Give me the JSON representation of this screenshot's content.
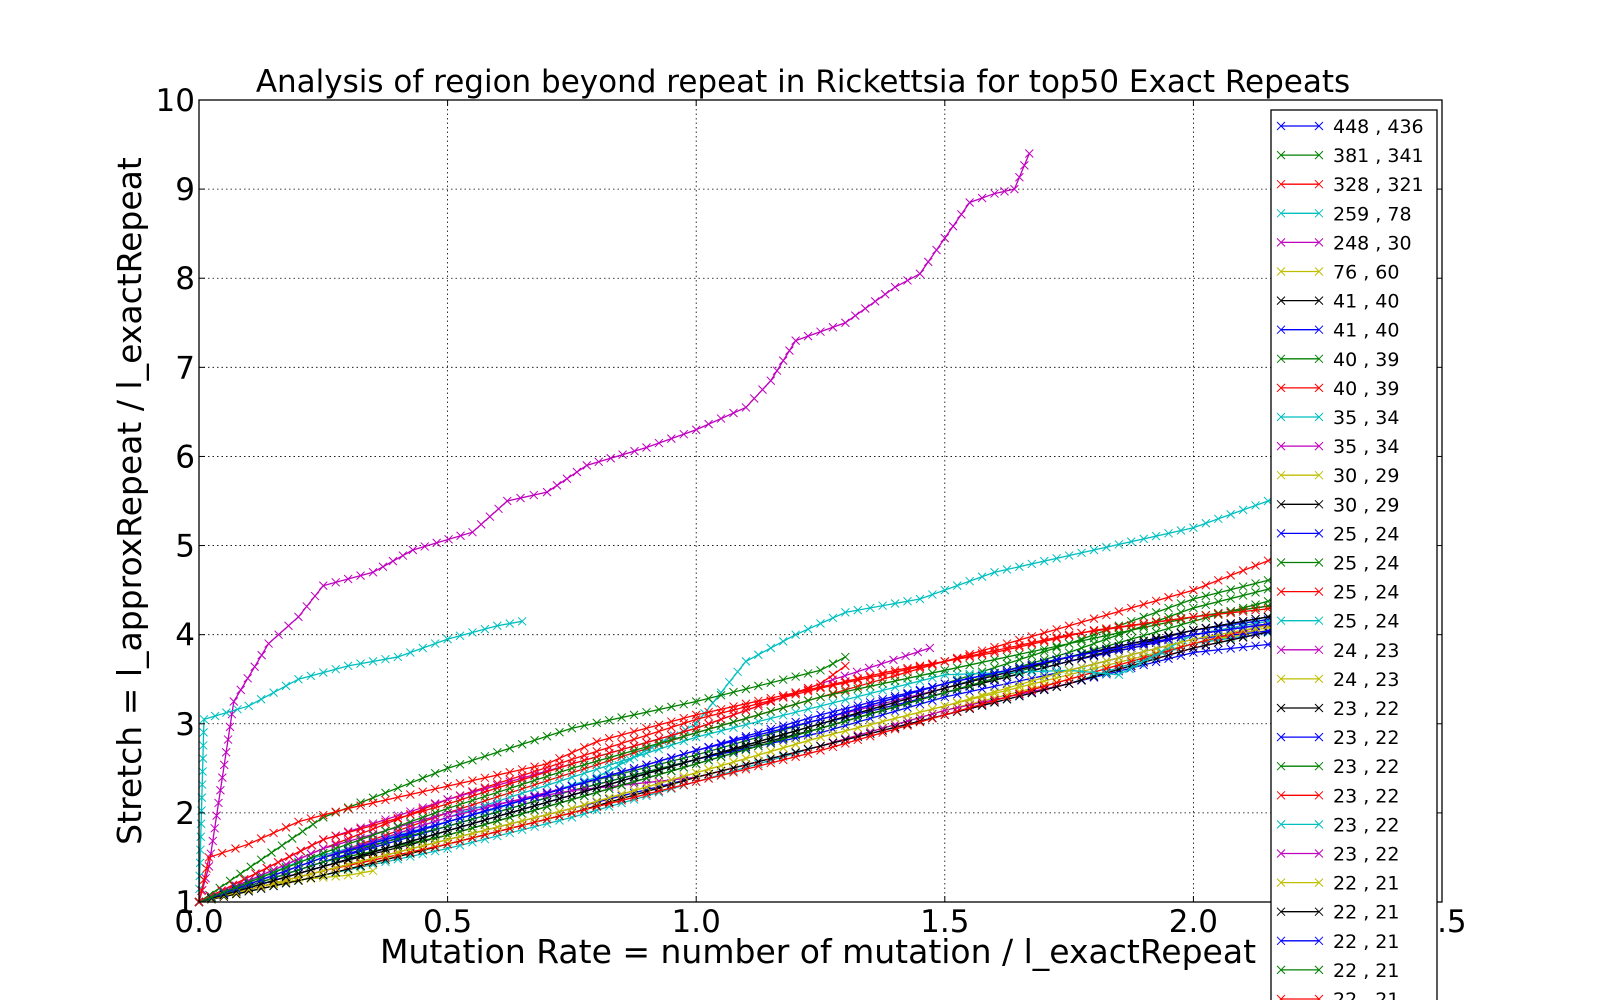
{
  "chart_data": {
    "type": "line",
    "title": "Analysis of region beyond repeat in Rickettsia for top50 Exact Repeats",
    "xlabel": "Mutation Rate = number of mutation / l_exactRepeat",
    "ylabel": "Stretch =   l_approxRepeat / l_exactRepeat",
    "xlim": [
      0.0,
      2.5
    ],
    "ylim": [
      1,
      10
    ],
    "xticks": [
      "0.0",
      "0.5",
      "1.0",
      "1.5",
      "2.0",
      "2.5"
    ],
    "yticks": [
      "1",
      "2",
      "3",
      "4",
      "5",
      "6",
      "7",
      "8",
      "9",
      "10"
    ],
    "grid": true,
    "legend_position": "right",
    "marker": "x",
    "series": [
      {
        "name": "448 , 436",
        "color": "#0000ff",
        "x": [
          0,
          0.25,
          0.5,
          0.75,
          1.0,
          1.25,
          1.5,
          1.75,
          2.0,
          2.25
        ],
        "y": [
          1.0,
          1.35,
          1.7,
          2.05,
          2.4,
          2.75,
          3.1,
          3.45,
          3.8,
          3.95
        ]
      },
      {
        "name": "381 , 341",
        "color": "#008000",
        "x": [
          0,
          0.25,
          0.5,
          0.75,
          1.0,
          1.25,
          1.5,
          1.75,
          2.0,
          2.25
        ],
        "y": [
          1.0,
          1.5,
          1.9,
          2.3,
          2.65,
          3.05,
          3.45,
          3.9,
          4.4,
          4.75
        ]
      },
      {
        "name": "328 , 321",
        "color": "#ff0000",
        "x": [
          0,
          0.25,
          0.5,
          0.75,
          1.0,
          1.25,
          1.5,
          1.75,
          2.0,
          2.25
        ],
        "y": [
          1.0,
          1.5,
          2.0,
          2.45,
          2.9,
          3.3,
          3.7,
          4.1,
          4.5,
          5.05
        ]
      },
      {
        "name": "259 , 78",
        "color": "#00bfbf",
        "x": [
          0,
          0.2,
          0.4,
          0.6,
          0.8,
          1.0,
          1.1,
          1.2,
          1.3,
          1.45,
          1.6,
          1.8,
          2.0,
          2.15,
          2.25
        ],
        "y": [
          1.0,
          1.45,
          1.75,
          2.05,
          2.4,
          3.0,
          3.7,
          4.0,
          4.25,
          4.4,
          4.7,
          4.95,
          5.2,
          5.5,
          5.6
        ]
      },
      {
        "name": "248 , 30",
        "color": "#bf00bf",
        "x": [
          0,
          0.02,
          0.07,
          0.14,
          0.2,
          0.25,
          0.35,
          0.43,
          0.55,
          0.62,
          0.7,
          0.78,
          0.9,
          1.0,
          1.1,
          1.15,
          1.2,
          1.3,
          1.4,
          1.45,
          1.5,
          1.55,
          1.6,
          1.64,
          1.67
        ],
        "y": [
          1.0,
          1.4,
          3.25,
          3.9,
          4.2,
          4.55,
          4.7,
          4.95,
          5.15,
          5.5,
          5.6,
          5.9,
          6.1,
          6.3,
          6.55,
          6.85,
          7.3,
          7.5,
          7.9,
          8.05,
          8.45,
          8.85,
          8.95,
          9.0,
          9.4
        ]
      },
      {
        "name": "76 , 60",
        "color": "#bfbf00",
        "x": [
          0,
          0.25,
          0.5,
          0.75,
          1.0,
          1.25,
          1.5,
          1.75,
          2.0,
          2.25
        ],
        "y": [
          1.0,
          1.3,
          1.65,
          2.0,
          2.4,
          2.75,
          3.15,
          3.5,
          3.9,
          4.2
        ]
      },
      {
        "name": "41 , 40",
        "color": "#000000",
        "x": [
          0,
          0.25,
          0.5,
          0.75,
          1.0,
          1.25,
          1.5,
          1.75,
          2.0,
          2.25
        ],
        "y": [
          1.0,
          1.4,
          1.8,
          2.2,
          2.6,
          2.95,
          3.35,
          3.7,
          4.0,
          4.2
        ]
      },
      {
        "name": "41 , 40",
        "color": "#0000ff",
        "x": [
          0,
          0.25,
          0.5,
          0.75,
          1.0,
          1.25,
          1.5,
          1.75,
          2.0,
          2.25
        ],
        "y": [
          1.0,
          1.45,
          1.85,
          2.25,
          2.6,
          3.0,
          3.35,
          3.7,
          4.0,
          4.25
        ]
      },
      {
        "name": "40 , 39",
        "color": "#008000",
        "x": [
          0,
          0.25,
          0.5,
          0.75,
          1.0,
          1.25,
          1.3
        ],
        "y": [
          1.0,
          1.95,
          2.5,
          2.95,
          3.25,
          3.6,
          3.75
        ]
      },
      {
        "name": "40 , 39",
        "color": "#ff0000",
        "x": [
          0,
          0.25,
          0.5,
          0.75,
          1.0,
          1.25,
          1.5,
          1.75,
          2.0,
          2.25
        ],
        "y": [
          1.0,
          1.6,
          2.15,
          2.6,
          3.05,
          3.4,
          3.7,
          4.0,
          4.2,
          4.4
        ]
      },
      {
        "name": "35 , 34",
        "color": "#00bfbf",
        "x": [
          0,
          0.01,
          0.1,
          0.2,
          0.3,
          0.4,
          0.5,
          0.6,
          0.65
        ],
        "y": [
          1.0,
          3.05,
          3.2,
          3.5,
          3.65,
          3.75,
          3.95,
          4.1,
          4.15
        ]
      },
      {
        "name": "35 , 34",
        "color": "#bf00bf",
        "x": [
          0,
          0.25,
          0.5,
          0.75,
          1.0,
          1.25,
          1.47
        ],
        "y": [
          1.0,
          1.7,
          2.15,
          2.55,
          2.95,
          3.45,
          3.85
        ]
      },
      {
        "name": "30 , 29",
        "color": "#bfbf00",
        "x": [
          0,
          0.25,
          0.5,
          0.75,
          1.0,
          1.25,
          1.5,
          1.75,
          2.0,
          2.25
        ],
        "y": [
          1.0,
          1.35,
          1.7,
          2.05,
          2.45,
          2.85,
          3.2,
          3.55,
          3.9,
          4.15
        ]
      },
      {
        "name": "30 , 29",
        "color": "#000000",
        "x": [
          0,
          0.25,
          0.5,
          0.75,
          1.0,
          1.25,
          1.5,
          1.75,
          2.0,
          2.25
        ],
        "y": [
          1.0,
          1.4,
          1.75,
          2.15,
          2.55,
          2.95,
          3.35,
          3.7,
          4.05,
          4.3
        ]
      },
      {
        "name": "25 , 24",
        "color": "#0000ff",
        "x": [
          0,
          0.25,
          0.5,
          0.75,
          1.0,
          1.25,
          1.5,
          1.75,
          2.0,
          2.25
        ],
        "y": [
          1.0,
          1.45,
          1.9,
          2.3,
          2.7,
          3.1,
          3.45,
          3.75,
          4.05,
          4.25
        ]
      },
      {
        "name": "25 , 24",
        "color": "#008000",
        "x": [
          0,
          0.25,
          0.5,
          0.75,
          1.0,
          1.25,
          1.5,
          1.75,
          2.0,
          2.25
        ],
        "y": [
          1.0,
          1.5,
          1.85,
          2.25,
          2.6,
          3.0,
          3.4,
          3.8,
          4.3,
          4.65
        ]
      },
      {
        "name": "25 , 24",
        "color": "#ff0000",
        "x": [
          0,
          0.25,
          0.5,
          0.75,
          1.0,
          1.25,
          1.3
        ],
        "y": [
          1.0,
          1.7,
          2.1,
          2.55,
          2.95,
          3.45,
          3.65
        ]
      },
      {
        "name": "25 , 24",
        "color": "#00bfbf",
        "x": [
          0,
          0.25,
          0.5,
          0.75,
          1.0,
          1.25,
          1.5,
          1.75,
          2.0,
          2.25
        ],
        "y": [
          1.0,
          1.3,
          1.6,
          1.95,
          2.35,
          2.75,
          3.1,
          3.45,
          3.9,
          4.1
        ]
      },
      {
        "name": "24 , 23",
        "color": "#bf00bf",
        "x": [
          0,
          0.25,
          0.5,
          0.75,
          1.0,
          1.25,
          1.5,
          1.75,
          2.0,
          2.25
        ],
        "y": [
          1.0,
          1.6,
          2.0,
          2.25,
          2.4,
          2.75,
          3.15,
          3.45,
          3.85,
          4.15
        ]
      },
      {
        "name": "24 , 23",
        "color": "#bfbf00",
        "x": [
          0,
          0.1,
          0.2,
          0.3,
          0.35
        ],
        "y": [
          1.0,
          1.15,
          1.25,
          1.3,
          1.35
        ]
      },
      {
        "name": "23 , 22",
        "color": "#000000",
        "x": [
          0,
          0.25,
          0.5,
          0.75,
          1.0,
          1.25,
          1.5,
          1.75,
          2.0,
          2.25
        ],
        "y": [
          1.0,
          1.3,
          1.65,
          2.0,
          2.4,
          2.75,
          3.1,
          3.45,
          3.85,
          4.15
        ]
      },
      {
        "name": "23 , 22",
        "color": "#0000ff",
        "x": [
          0,
          0.25,
          0.5,
          0.75,
          1.0,
          1.25,
          1.5,
          1.75,
          2.0,
          2.25
        ],
        "y": [
          1.0,
          1.4,
          1.8,
          2.2,
          2.6,
          2.9,
          3.3,
          3.6,
          3.95,
          4.1
        ]
      },
      {
        "name": "23 , 22",
        "color": "#008000",
        "x": [
          0,
          0.25,
          0.5,
          0.75,
          1.0,
          1.25,
          1.5,
          1.75,
          2.0,
          2.2
        ],
        "y": [
          1.0,
          1.45,
          1.75,
          2.15,
          2.55,
          2.95,
          3.35,
          3.75,
          4.15,
          4.45
        ]
      },
      {
        "name": "23 , 22",
        "color": "#ff0000",
        "x": [
          0,
          0.25,
          0.5,
          0.75,
          1.0,
          1.25,
          1.5,
          1.75,
          2.0,
          2.25
        ],
        "y": [
          1.0,
          1.35,
          1.65,
          2.0,
          2.35,
          2.7,
          3.1,
          3.5,
          3.9,
          4.25
        ]
      },
      {
        "name": "23 , 22",
        "color": "#00bfbf",
        "x": [
          0,
          0.25,
          0.5,
          0.75,
          1.0,
          1.25,
          1.5,
          1.75,
          1.85,
          2.0,
          2.25
        ],
        "y": [
          1.0,
          1.5,
          1.95,
          2.4,
          2.85,
          3.2,
          3.55,
          3.6,
          3.55,
          4.0,
          4.25
        ]
      },
      {
        "name": "23 , 22",
        "color": "#bf00bf",
        "x": [
          0,
          0.25,
          0.5,
          0.75,
          1.0,
          1.25,
          1.5,
          1.75,
          2.0,
          2.25
        ],
        "y": [
          1.0,
          1.5,
          1.95,
          2.3,
          2.7,
          3.05,
          3.4,
          3.75,
          4.0,
          4.2
        ]
      },
      {
        "name": "22 , 21",
        "color": "#bfbf00",
        "x": [
          0,
          0.25,
          0.5,
          0.75,
          1.0,
          1.25,
          1.5,
          1.75,
          2.0,
          2.25
        ],
        "y": [
          1.0,
          1.35,
          1.7,
          2.05,
          2.45,
          2.85,
          3.2,
          3.6,
          3.95,
          4.2
        ]
      },
      {
        "name": "22 , 21",
        "color": "#000000",
        "x": [
          0,
          0.25,
          0.5,
          0.75,
          1.0,
          1.25,
          1.5,
          1.75,
          2.0,
          2.25
        ],
        "y": [
          1.0,
          1.4,
          1.8,
          2.2,
          2.6,
          3.0,
          3.4,
          3.75,
          4.05,
          4.3
        ]
      },
      {
        "name": "22 , 21",
        "color": "#0000ff",
        "x": [
          0,
          0.25,
          0.5,
          0.75,
          1.0,
          1.25,
          1.5,
          1.75,
          2.0,
          2.25
        ],
        "y": [
          1.0,
          1.5,
          1.9,
          2.3,
          2.7,
          3.05,
          3.45,
          3.75,
          4.0,
          4.2
        ]
      },
      {
        "name": "22 , 21",
        "color": "#008000",
        "x": [
          0,
          0.25,
          0.5,
          0.75,
          1.0,
          1.25,
          1.5,
          1.75,
          2.0,
          2.25
        ],
        "y": [
          1.0,
          1.55,
          2.05,
          2.5,
          2.9,
          3.3,
          3.6,
          3.9,
          4.2,
          4.4
        ]
      },
      {
        "name": "22 , 21",
        "color": "#ff0000",
        "x": [
          0,
          0.02,
          0.1,
          0.2,
          0.3,
          0.5,
          0.7,
          0.8,
          1.0,
          1.2,
          1.4,
          1.6,
          1.8,
          2.0,
          2.25
        ],
        "y": [
          1.0,
          1.5,
          1.65,
          1.9,
          2.05,
          2.3,
          2.55,
          2.8,
          3.1,
          3.35,
          3.6,
          3.8,
          4.05,
          4.2,
          4.35
        ]
      }
    ]
  }
}
